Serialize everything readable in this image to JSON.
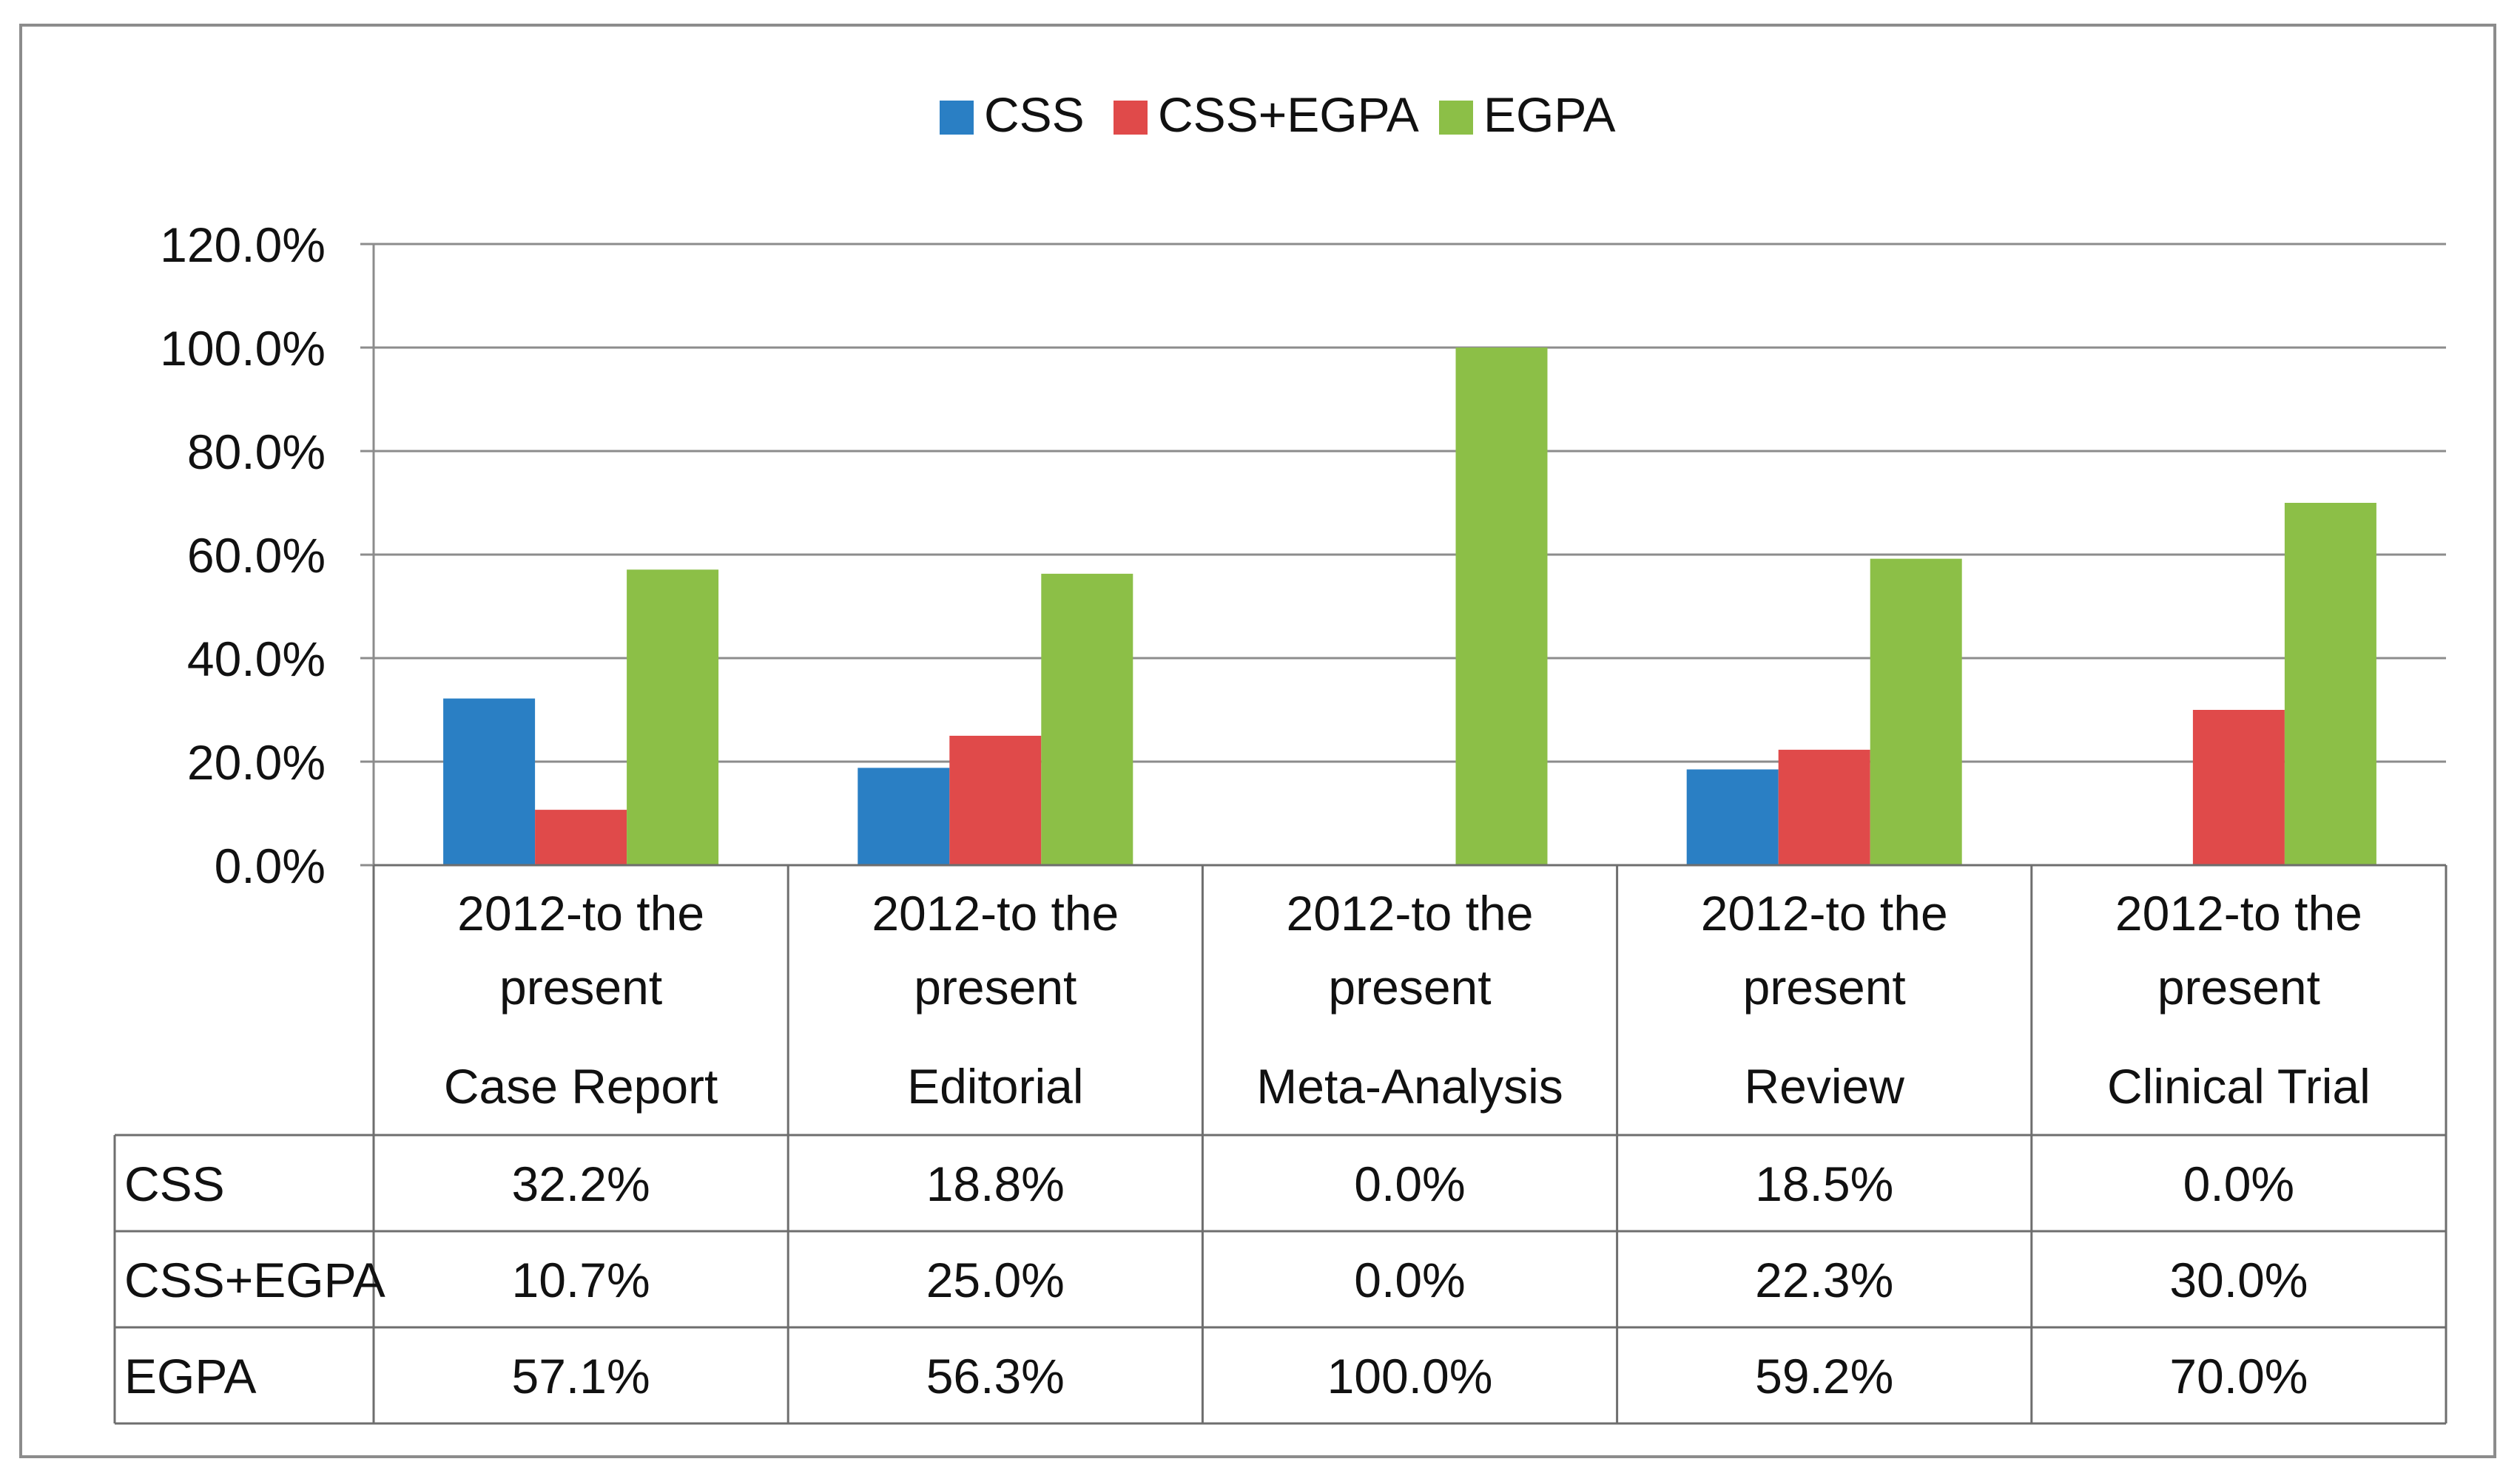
{
  "chart_data": {
    "type": "bar",
    "title": "",
    "xlabel": "",
    "ylabel": "",
    "ylim": [
      0,
      120
    ],
    "yticks": [
      "0.0%",
      "20.0%",
      "40.0%",
      "60.0%",
      "80.0%",
      "100.0%",
      "120.0%"
    ],
    "grid": true,
    "legend_position": "top",
    "categories": [
      {
        "period": "2012-to the present",
        "type": "Case Report"
      },
      {
        "period": "2012-to the present",
        "type": "Editorial"
      },
      {
        "period": "2012-to the present",
        "type": "Meta-Analysis"
      },
      {
        "period": "2012-to the present",
        "type": "Review"
      },
      {
        "period": "2012-to the present",
        "type": "Clinical Trial"
      }
    ],
    "series": [
      {
        "name": "CSS",
        "color": "#2a7fc4",
        "values": [
          32.2,
          18.8,
          0.0,
          18.5,
          0.0
        ],
        "labels": [
          "32.2%",
          "18.8%",
          "0.0%",
          "18.5%",
          "0.0%"
        ]
      },
      {
        "name": "CSS+EGPA",
        "color": "#e04a4a",
        "values": [
          10.7,
          25.0,
          0.0,
          22.3,
          30.0
        ],
        "labels": [
          "10.7%",
          "25.0%",
          "0.0%",
          "22.3%",
          "30.0%"
        ]
      },
      {
        "name": "EGPA",
        "color": "#8cbf47",
        "values": [
          57.1,
          56.3,
          100.0,
          59.2,
          70.0
        ],
        "labels": [
          "57.1%",
          "56.3%",
          "100.0%",
          "59.2%",
          "70.0%"
        ]
      }
    ]
  }
}
